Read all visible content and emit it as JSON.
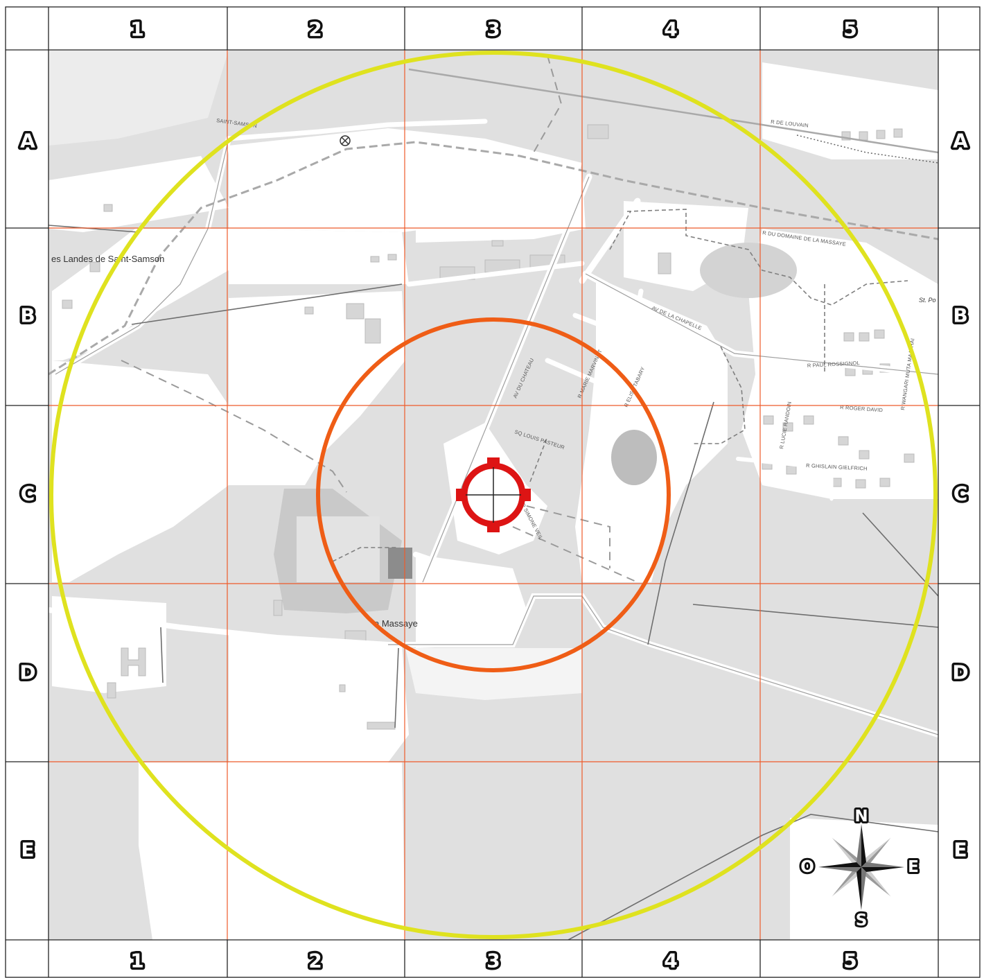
{
  "grid": {
    "columns": [
      "1",
      "2",
      "3",
      "4",
      "5"
    ],
    "rows": [
      "A",
      "B",
      "C",
      "D",
      "E"
    ]
  },
  "places": {
    "landes": "es Landes de Saint-Samson",
    "massaye": "a Massaye",
    "saint_samson": "SAINT-SAMSON",
    "st_po": "St. Po"
  },
  "streets": {
    "louvain": "R DE LOUVAIN",
    "domaine": "R DU DOMAINE DE LA MASSAYE",
    "chapelle": "AV DE LA CHAPELLE",
    "chateau": "AV DU CHATEAU",
    "marie": "R MARIE MARVINGT",
    "tabary": "R ELISE TABARY",
    "pasteur": "SQ LOUIS PASTEUR",
    "simone": "R SIMONE VEIL",
    "paul": "R PAUL ROSSIGNOL",
    "roger": "R ROGER DAVID",
    "lucie": "R LUCIE RANDOIN",
    "ghislain": "R GHISLAIN GIELFRICH",
    "wangari": "R WANGARI MUTA MAATHAI"
  },
  "compass": {
    "n": "N",
    "s": "S",
    "e": "E",
    "o": "O"
  },
  "colors": {
    "outer_ring": "#dfe21f",
    "inner_ring": "#ef5d16",
    "target": "#dd1414",
    "grid_lines": "#ee5a2a"
  }
}
